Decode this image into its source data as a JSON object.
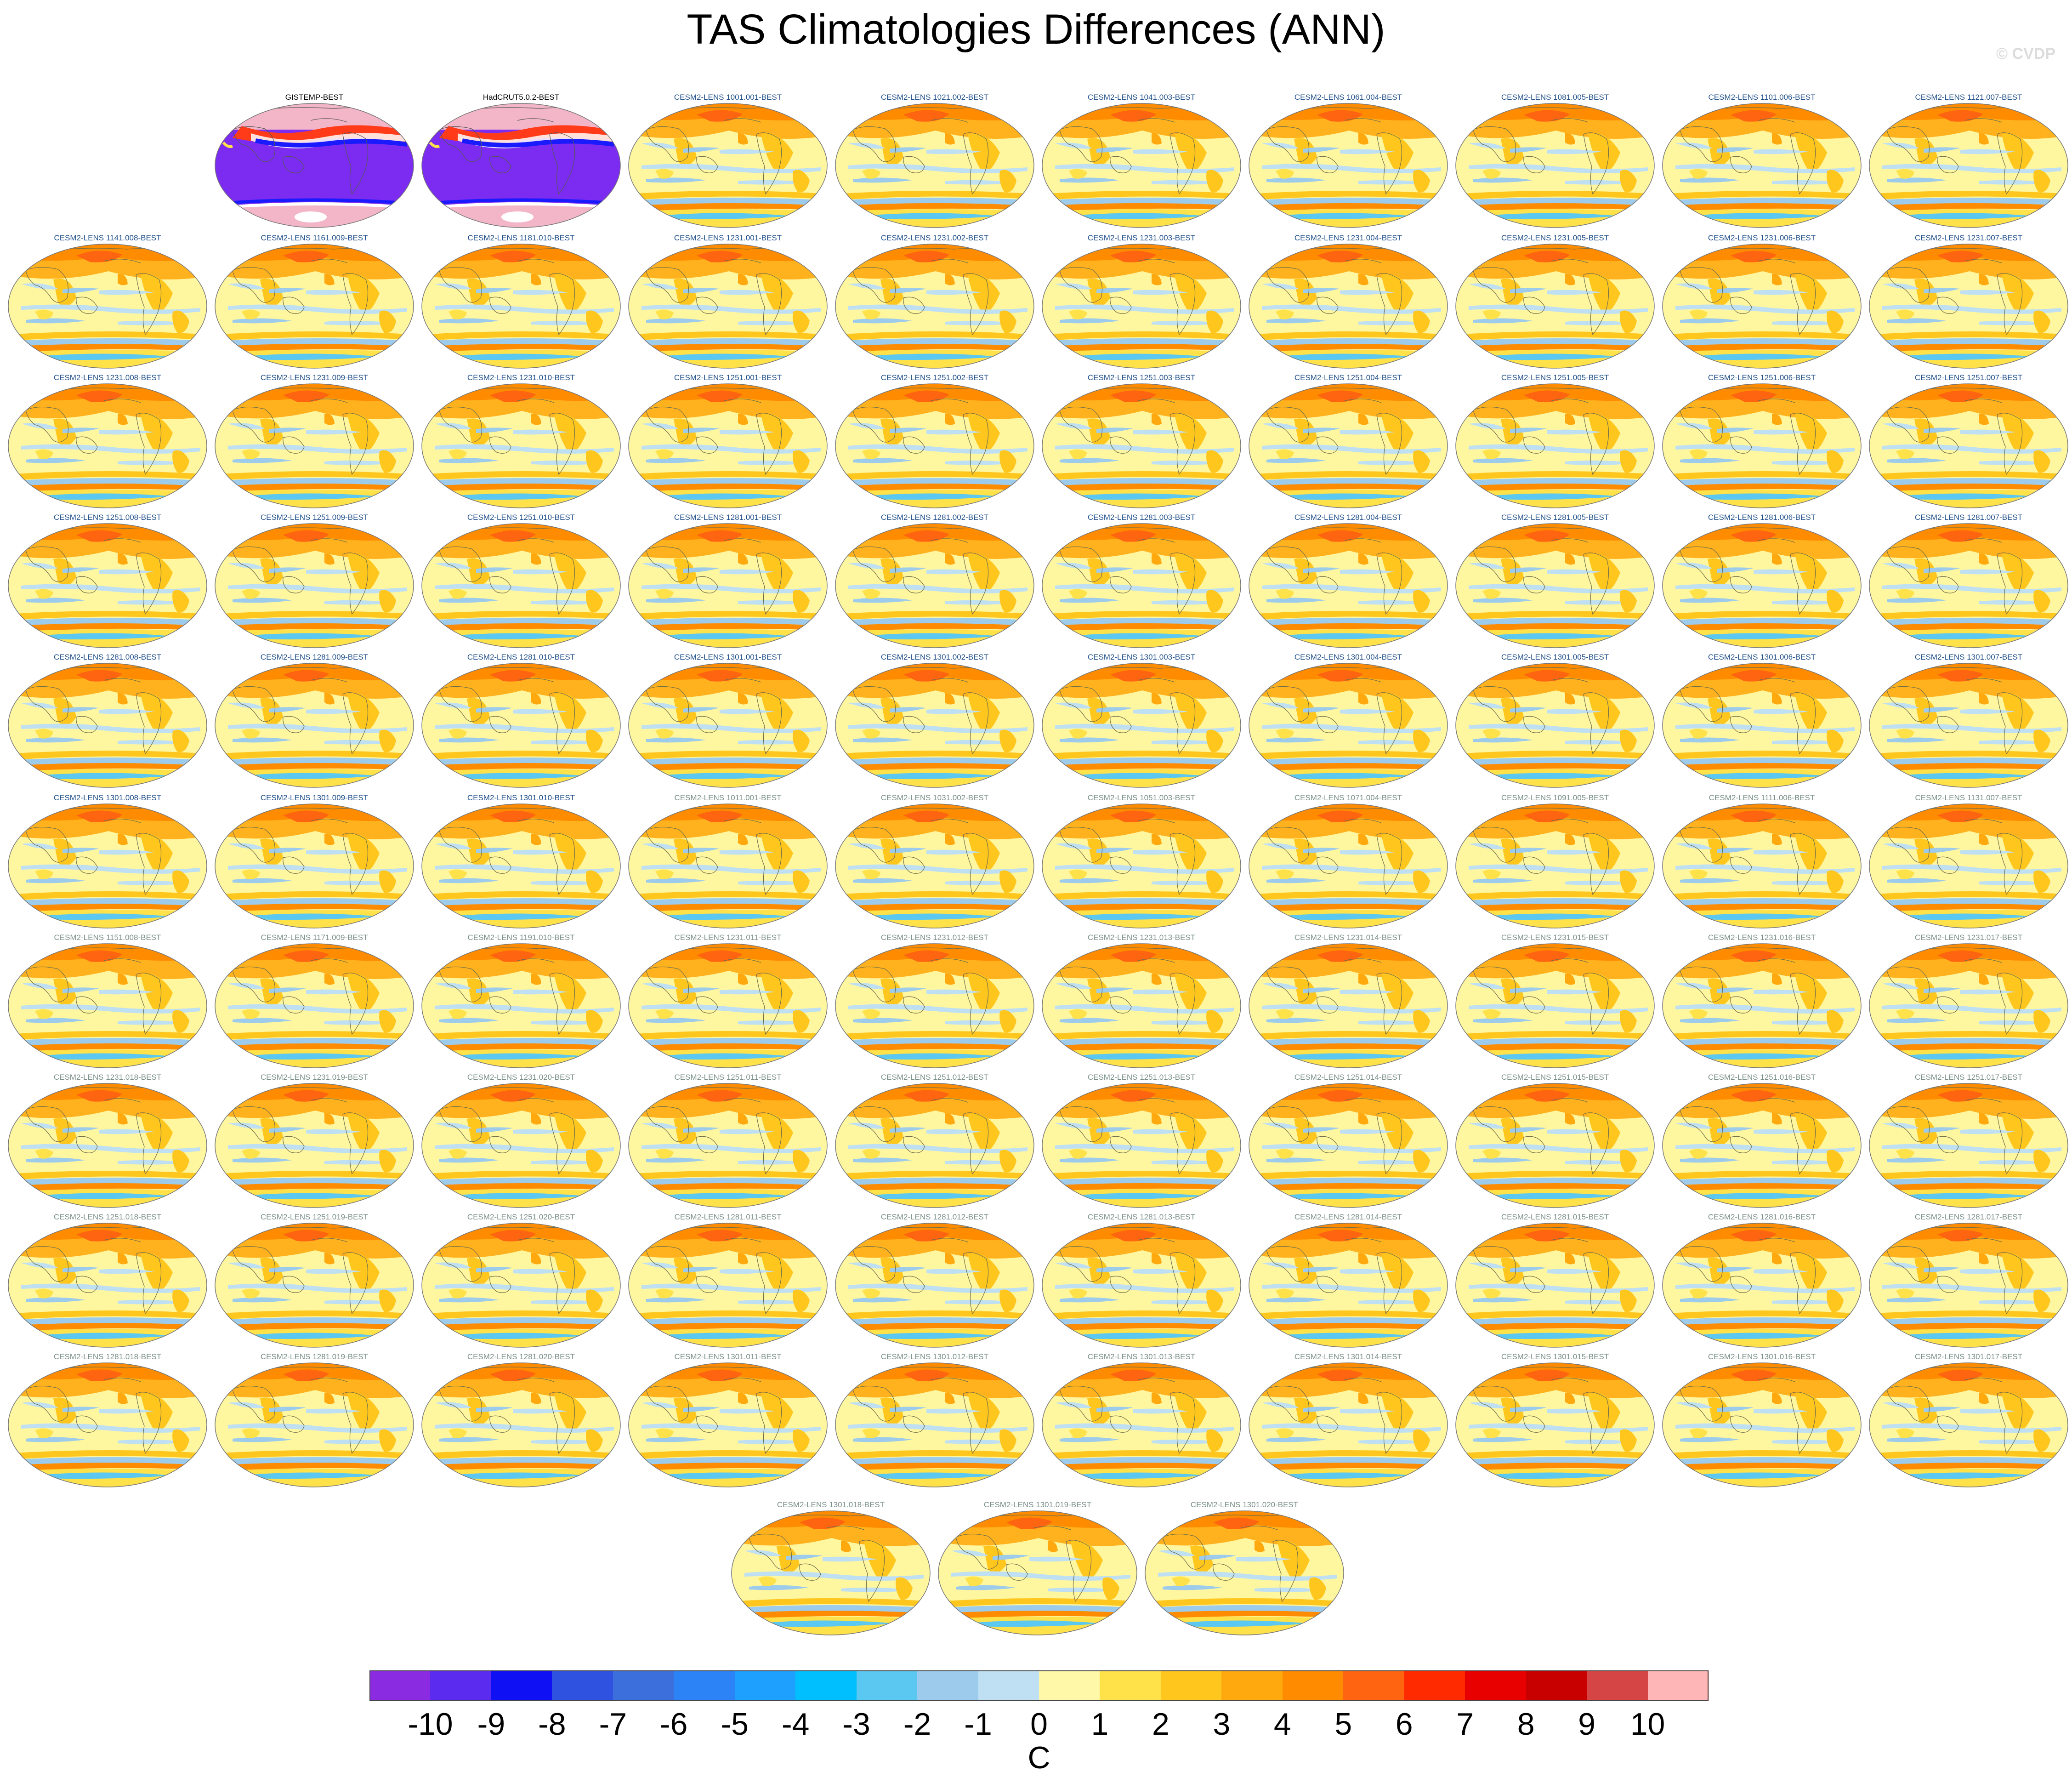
{
  "title": "TAS Climatologies Differences (ANN)",
  "watermark": "© CVDP",
  "panel_title_colors": {
    "observations": "#000000",
    "group_a": "#1f4f8a",
    "group_b": "#7a8f8a"
  },
  "panels": [
    {
      "label": "GISTEMP-BEST",
      "kind": "obs"
    },
    {
      "label": "HadCRUT5.0.2-BEST",
      "kind": "obs"
    },
    {
      "label": "CESM2-LENS 1001.001-BEST",
      "kind": "a"
    },
    {
      "label": "CESM2-LENS 1021.002-BEST",
      "kind": "a"
    },
    {
      "label": "CESM2-LENS 1041.003-BEST",
      "kind": "a"
    },
    {
      "label": "CESM2-LENS 1061.004-BEST",
      "kind": "a"
    },
    {
      "label": "CESM2-LENS 1081.005-BEST",
      "kind": "a"
    },
    {
      "label": "CESM2-LENS 1101.006-BEST",
      "kind": "a"
    },
    {
      "label": "CESM2-LENS 1121.007-BEST",
      "kind": "a"
    },
    {
      "label": "CESM2-LENS 1141.008-BEST",
      "kind": "a"
    },
    {
      "label": "CESM2-LENS 1161.009-BEST",
      "kind": "a"
    },
    {
      "label": "CESM2-LENS 1181.010-BEST",
      "kind": "a"
    },
    {
      "label": "CESM2-LENS 1231.001-BEST",
      "kind": "a"
    },
    {
      "label": "CESM2-LENS 1231.002-BEST",
      "kind": "a"
    },
    {
      "label": "CESM2-LENS 1231.003-BEST",
      "kind": "a"
    },
    {
      "label": "CESM2-LENS 1231.004-BEST",
      "kind": "a"
    },
    {
      "label": "CESM2-LENS 1231.005-BEST",
      "kind": "a"
    },
    {
      "label": "CESM2-LENS 1231.006-BEST",
      "kind": "a"
    },
    {
      "label": "CESM2-LENS 1231.007-BEST",
      "kind": "a"
    },
    {
      "label": "CESM2-LENS 1231.008-BEST",
      "kind": "a"
    },
    {
      "label": "CESM2-LENS 1231.009-BEST",
      "kind": "a"
    },
    {
      "label": "CESM2-LENS 1231.010-BEST",
      "kind": "a"
    },
    {
      "label": "CESM2-LENS 1251.001-BEST",
      "kind": "a"
    },
    {
      "label": "CESM2-LENS 1251.002-BEST",
      "kind": "a"
    },
    {
      "label": "CESM2-LENS 1251.003-BEST",
      "kind": "a"
    },
    {
      "label": "CESM2-LENS 1251.004-BEST",
      "kind": "a"
    },
    {
      "label": "CESM2-LENS 1251.005-BEST",
      "kind": "a"
    },
    {
      "label": "CESM2-LENS 1251.006-BEST",
      "kind": "a"
    },
    {
      "label": "CESM2-LENS 1251.007-BEST",
      "kind": "a"
    },
    {
      "label": "CESM2-LENS 1251.008-BEST",
      "kind": "a"
    },
    {
      "label": "CESM2-LENS 1251.009-BEST",
      "kind": "a"
    },
    {
      "label": "CESM2-LENS 1251.010-BEST",
      "kind": "a"
    },
    {
      "label": "CESM2-LENS 1281.001-BEST",
      "kind": "a"
    },
    {
      "label": "CESM2-LENS 1281.002-BEST",
      "kind": "a"
    },
    {
      "label": "CESM2-LENS 1281.003-BEST",
      "kind": "a"
    },
    {
      "label": "CESM2-LENS 1281.004-BEST",
      "kind": "a"
    },
    {
      "label": "CESM2-LENS 1281.005-BEST",
      "kind": "a"
    },
    {
      "label": "CESM2-LENS 1281.006-BEST",
      "kind": "a"
    },
    {
      "label": "CESM2-LENS 1281.007-BEST",
      "kind": "a"
    },
    {
      "label": "CESM2-LENS 1281.008-BEST",
      "kind": "a"
    },
    {
      "label": "CESM2-LENS 1281.009-BEST",
      "kind": "a"
    },
    {
      "label": "CESM2-LENS 1281.010-BEST",
      "kind": "a"
    },
    {
      "label": "CESM2-LENS 1301.001-BEST",
      "kind": "a"
    },
    {
      "label": "CESM2-LENS 1301.002-BEST",
      "kind": "a"
    },
    {
      "label": "CESM2-LENS 1301.003-BEST",
      "kind": "a"
    },
    {
      "label": "CESM2-LENS 1301.004-BEST",
      "kind": "a"
    },
    {
      "label": "CESM2-LENS 1301.005-BEST",
      "kind": "a"
    },
    {
      "label": "CESM2-LENS 1301.006-BEST",
      "kind": "a"
    },
    {
      "label": "CESM2-LENS 1301.007-BEST",
      "kind": "a"
    },
    {
      "label": "CESM2-LENS 1301.008-BEST",
      "kind": "a"
    },
    {
      "label": "CESM2-LENS 1301.009-BEST",
      "kind": "a"
    },
    {
      "label": "CESM2-LENS 1301.010-BEST",
      "kind": "a"
    },
    {
      "label": "CESM2-LENS 1011.001-BEST",
      "kind": "b"
    },
    {
      "label": "CESM2-LENS 1031.002-BEST",
      "kind": "b"
    },
    {
      "label": "CESM2-LENS 1051.003-BEST",
      "kind": "b"
    },
    {
      "label": "CESM2-LENS 1071.004-BEST",
      "kind": "b"
    },
    {
      "label": "CESM2-LENS 1091.005-BEST",
      "kind": "b"
    },
    {
      "label": "CESM2-LENS 1111.006-BEST",
      "kind": "b"
    },
    {
      "label": "CESM2-LENS 1131.007-BEST",
      "kind": "b"
    },
    {
      "label": "CESM2-LENS 1151.008-BEST",
      "kind": "b"
    },
    {
      "label": "CESM2-LENS 1171.009-BEST",
      "kind": "b"
    },
    {
      "label": "CESM2-LENS 1191.010-BEST",
      "kind": "b"
    },
    {
      "label": "CESM2-LENS 1231.011-BEST",
      "kind": "b"
    },
    {
      "label": "CESM2-LENS 1231.012-BEST",
      "kind": "b"
    },
    {
      "label": "CESM2-LENS 1231.013-BEST",
      "kind": "b"
    },
    {
      "label": "CESM2-LENS 1231.014-BEST",
      "kind": "b"
    },
    {
      "label": "CESM2-LENS 1231.015-BEST",
      "kind": "b"
    },
    {
      "label": "CESM2-LENS 1231.016-BEST",
      "kind": "b"
    },
    {
      "label": "CESM2-LENS 1231.017-BEST",
      "kind": "b"
    },
    {
      "label": "CESM2-LENS 1231.018-BEST",
      "kind": "b"
    },
    {
      "label": "CESM2-LENS 1231.019-BEST",
      "kind": "b"
    },
    {
      "label": "CESM2-LENS 1231.020-BEST",
      "kind": "b"
    },
    {
      "label": "CESM2-LENS 1251.011-BEST",
      "kind": "b"
    },
    {
      "label": "CESM2-LENS 1251.012-BEST",
      "kind": "b"
    },
    {
      "label": "CESM2-LENS 1251.013-BEST",
      "kind": "b"
    },
    {
      "label": "CESM2-LENS 1251.014-BEST",
      "kind": "b"
    },
    {
      "label": "CESM2-LENS 1251.015-BEST",
      "kind": "b"
    },
    {
      "label": "CESM2-LENS 1251.016-BEST",
      "kind": "b"
    },
    {
      "label": "CESM2-LENS 1251.017-BEST",
      "kind": "b"
    },
    {
      "label": "CESM2-LENS 1251.018-BEST",
      "kind": "b"
    },
    {
      "label": "CESM2-LENS 1251.019-BEST",
      "kind": "b"
    },
    {
      "label": "CESM2-LENS 1251.020-BEST",
      "kind": "b"
    },
    {
      "label": "CESM2-LENS 1281.011-BEST",
      "kind": "b"
    },
    {
      "label": "CESM2-LENS 1281.012-BEST",
      "kind": "b"
    },
    {
      "label": "CESM2-LENS 1281.013-BEST",
      "kind": "b"
    },
    {
      "label": "CESM2-LENS 1281.014-BEST",
      "kind": "b"
    },
    {
      "label": "CESM2-LENS 1281.015-BEST",
      "kind": "b"
    },
    {
      "label": "CESM2-LENS 1281.016-BEST",
      "kind": "b"
    },
    {
      "label": "CESM2-LENS 1281.017-BEST",
      "kind": "b"
    },
    {
      "label": "CESM2-LENS 1281.018-BEST",
      "kind": "b"
    },
    {
      "label": "CESM2-LENS 1281.019-BEST",
      "kind": "b"
    },
    {
      "label": "CESM2-LENS 1281.020-BEST",
      "kind": "b"
    },
    {
      "label": "CESM2-LENS 1301.011-BEST",
      "kind": "b"
    },
    {
      "label": "CESM2-LENS 1301.012-BEST",
      "kind": "b"
    },
    {
      "label": "CESM2-LENS 1301.013-BEST",
      "kind": "b"
    },
    {
      "label": "CESM2-LENS 1301.014-BEST",
      "kind": "b"
    },
    {
      "label": "CESM2-LENS 1301.015-BEST",
      "kind": "b"
    },
    {
      "label": "CESM2-LENS 1301.016-BEST",
      "kind": "b"
    },
    {
      "label": "CESM2-LENS 1301.017-BEST",
      "kind": "b"
    },
    {
      "label": "CESM2-LENS 1301.018-BEST",
      "kind": "b"
    },
    {
      "label": "CESM2-LENS 1301.019-BEST",
      "kind": "b"
    },
    {
      "label": "CESM2-LENS 1301.020-BEST",
      "kind": "b"
    }
  ],
  "colorbar": {
    "colors": [
      "#8a2be2",
      "#5b2bf0",
      "#1010f5",
      "#2f52e0",
      "#3c6fdc",
      "#2b83f5",
      "#1ea0ff",
      "#00bfff",
      "#5ac8f0",
      "#9ccbeb",
      "#bfe0f2",
      "#fff8a8",
      "#ffe14a",
      "#ffc61e",
      "#ffa90f",
      "#ff8c00",
      "#ff6410",
      "#ff2a00",
      "#e80000",
      "#c80000",
      "#d64545",
      "#ffb6b6"
    ],
    "tick_labels": [
      "-10",
      "-9",
      "-8",
      "-7",
      "-6",
      "-5",
      "-4",
      "-3",
      "-2",
      "-1",
      "0",
      "1",
      "2",
      "3",
      "4",
      "5",
      "6",
      "7",
      "8",
      "9",
      "10"
    ],
    "unit": "C"
  }
}
